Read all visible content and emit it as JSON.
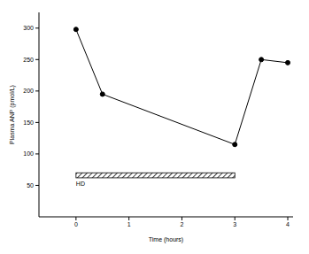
{
  "chart_data": {
    "type": "line",
    "x_label": "Time (hours)",
    "y_label": "Plasma ANP (pmol/L)",
    "x": [
      0,
      0.5,
      3,
      3.5,
      4
    ],
    "values": [
      298,
      195,
      115,
      250,
      245
    ],
    "color": "#000000",
    "marker": "circle",
    "xlim": [
      -0.7,
      4.1
    ],
    "xticks": [
      0,
      1,
      2,
      3,
      4
    ],
    "ylim": [
      0,
      325
    ],
    "yticks": [
      50,
      100,
      150,
      200,
      250,
      300
    ],
    "grid": false,
    "annotations": [
      {
        "text": "HD",
        "x_start": 0,
        "x_end": 3,
        "y_low": 62,
        "y_high": 70
      }
    ]
  }
}
